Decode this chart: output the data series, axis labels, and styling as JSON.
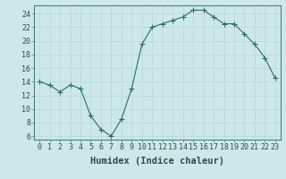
{
  "x": [
    0,
    1,
    2,
    3,
    4,
    5,
    6,
    7,
    8,
    9,
    10,
    11,
    12,
    13,
    14,
    15,
    16,
    17,
    18,
    19,
    20,
    21,
    22,
    23
  ],
  "y": [
    14,
    13.5,
    12.5,
    13.5,
    13,
    9,
    7,
    6,
    8.5,
    13,
    19.5,
    22,
    22.5,
    23,
    23.5,
    24.5,
    24.5,
    23.5,
    22.5,
    22.5,
    21,
    19.5,
    17.5,
    14.5
  ],
  "line_color": "#2e6b6b",
  "marker_color": "#2e6b6b",
  "bg_color": "#cce8e8",
  "grid_color": "#b8d8d8",
  "xlabel": "Humidex (Indice chaleur)",
  "xlim": [
    -0.5,
    23.5
  ],
  "ylim": [
    5.5,
    25.2
  ],
  "yticks": [
    6,
    8,
    10,
    12,
    14,
    16,
    18,
    20,
    22,
    24
  ],
  "xticks": [
    0,
    1,
    2,
    3,
    4,
    5,
    6,
    7,
    8,
    9,
    10,
    11,
    12,
    13,
    14,
    15,
    16,
    17,
    18,
    19,
    20,
    21,
    22,
    23
  ],
  "xlabel_fontsize": 7.5,
  "tick_fontsize": 6,
  "marker_size": 2.5,
  "linewidth": 0.8
}
